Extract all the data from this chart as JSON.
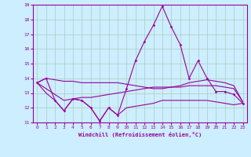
{
  "hours": [
    0,
    1,
    2,
    3,
    4,
    5,
    6,
    7,
    8,
    9,
    10,
    11,
    12,
    13,
    14,
    15,
    16,
    17,
    18,
    19,
    20,
    21,
    22,
    23
  ],
  "line1": [
    13.7,
    14.0,
    13.9,
    13.8,
    13.8,
    13.7,
    13.7,
    13.7,
    13.7,
    13.7,
    13.6,
    13.5,
    13.4,
    13.3,
    13.3,
    13.4,
    13.5,
    13.7,
    13.8,
    13.9,
    13.8,
    13.7,
    13.5,
    12.4
  ],
  "line2": [
    13.7,
    14.0,
    12.5,
    11.8,
    12.6,
    12.5,
    12.0,
    11.1,
    12.0,
    11.5,
    13.3,
    15.2,
    16.5,
    17.6,
    18.9,
    17.5,
    16.3,
    14.0,
    15.2,
    14.0,
    13.1,
    13.1,
    12.9,
    12.3
  ],
  "line3": [
    13.7,
    13.0,
    12.5,
    11.8,
    12.6,
    12.5,
    12.0,
    11.1,
    12.0,
    11.5,
    12.0,
    12.1,
    12.2,
    12.3,
    12.5,
    12.5,
    12.5,
    12.5,
    12.5,
    12.5,
    12.4,
    12.3,
    12.2,
    12.3
  ],
  "line4": [
    13.7,
    13.3,
    12.9,
    12.5,
    12.6,
    12.7,
    12.7,
    12.8,
    12.9,
    13.0,
    13.1,
    13.2,
    13.3,
    13.4,
    13.4,
    13.4,
    13.4,
    13.5,
    13.5,
    13.5,
    13.5,
    13.4,
    13.3,
    12.4
  ],
  "line_color": "#990099",
  "bg_color": "#cceeff",
  "grid_color": "#aaccbb",
  "xlabel": "Windchill (Refroidissement éolien,°C)",
  "ylim": [
    11,
    19
  ],
  "yticks": [
    11,
    12,
    13,
    14,
    15,
    16,
    17,
    18,
    19
  ],
  "xticks": [
    0,
    1,
    2,
    3,
    4,
    5,
    6,
    7,
    8,
    9,
    10,
    11,
    12,
    13,
    14,
    15,
    16,
    17,
    18,
    19,
    20,
    21,
    22,
    23
  ]
}
